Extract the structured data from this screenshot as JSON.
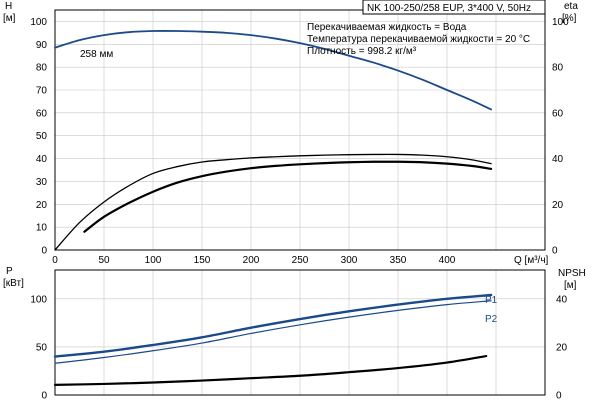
{
  "chart_data": [
    {
      "type": "line",
      "title": "NK 100-250/258 EUP, 3*400 V, 50Hz",
      "notes": [
        "Перекачиваемая жидкость = Вода",
        "Температура перекачиваемой жидкости = 20 °C",
        "Плотность = 998.2 кг/м³"
      ],
      "xlabel": "Q [м³/ч]",
      "xlim": [
        0,
        500
      ],
      "xticks": [
        0,
        50,
        100,
        150,
        200,
        250,
        300,
        350,
        400
      ],
      "grid": true,
      "left_axis": {
        "label_top": "H",
        "label_unit": "[м]",
        "ylim": [
          0,
          105
        ],
        "ticks": [
          0,
          10,
          20,
          30,
          40,
          50,
          60,
          70,
          80,
          90,
          100
        ]
      },
      "right_axis": {
        "label_top": "eta",
        "label_unit": "[%]",
        "ylim": [
          0,
          105
        ],
        "ticks": [
          0,
          20,
          40,
          60,
          80,
          100
        ]
      },
      "series": [
        {
          "name": "258 мм",
          "axis": "left",
          "color": "#1a4a8a",
          "x": [
            0,
            25,
            50,
            75,
            100,
            125,
            150,
            175,
            200,
            225,
            250,
            275,
            300,
            325,
            350,
            375,
            400,
            425,
            445
          ],
          "y": [
            88.5,
            91.8,
            94.0,
            95.3,
            95.8,
            95.8,
            95.5,
            95.0,
            94.0,
            92.5,
            90.5,
            88.0,
            85.0,
            82.0,
            78.5,
            74.5,
            70.0,
            65.5,
            61.5
          ]
        },
        {
          "axis": "right",
          "color": "#000000",
          "x": [
            0,
            25,
            50,
            75,
            100,
            125,
            150,
            175,
            200,
            225,
            250,
            275,
            300,
            325,
            350,
            375,
            400,
            425,
            445
          ],
          "y": [
            0,
            12,
            21,
            28,
            33.5,
            36.5,
            38.5,
            39.5,
            40.3,
            40.8,
            41.2,
            41.5,
            41.7,
            41.8,
            41.8,
            41.5,
            40.8,
            39.5,
            37.8
          ]
        },
        {
          "axis": "right",
          "color": "#000000",
          "x": [
            30,
            50,
            75,
            100,
            125,
            150,
            175,
            200,
            225,
            250,
            275,
            300,
            325,
            350,
            375,
            400,
            425,
            445
          ],
          "y": [
            8,
            14.5,
            20.5,
            25.5,
            29.5,
            32.3,
            34.3,
            35.8,
            36.8,
            37.5,
            38.0,
            38.4,
            38.6,
            38.6,
            38.4,
            37.8,
            36.8,
            35.5
          ]
        }
      ]
    },
    {
      "type": "line",
      "xlim": [
        0,
        500
      ],
      "grid": true,
      "left_axis": {
        "label_top": "P",
        "label_unit": "[кВт]",
        "ylim": [
          0,
          130
        ],
        "ticks": [
          0,
          50,
          100
        ]
      },
      "right_axis": {
        "label_top": "NPSH",
        "label_unit": "[м]",
        "ylim": [
          0,
          52
        ],
        "ticks": [
          0,
          20,
          40
        ]
      },
      "series": [
        {
          "name": "P1",
          "axis": "left",
          "color": "#1a4a8a",
          "x": [
            0,
            50,
            100,
            150,
            200,
            250,
            300,
            350,
            400,
            445
          ],
          "y": [
            40,
            45,
            52,
            60,
            70,
            79,
            87,
            94,
            100,
            104
          ]
        },
        {
          "name": "P2",
          "axis": "left",
          "color": "#1a4a8a",
          "x": [
            0,
            50,
            100,
            150,
            200,
            250,
            300,
            350,
            400,
            445
          ],
          "y": [
            33,
            39,
            46,
            54,
            64,
            73,
            81,
            88,
            94,
            98
          ]
        },
        {
          "axis": "right",
          "color": "#000000",
          "x": [
            0,
            50,
            100,
            150,
            200,
            250,
            300,
            350,
            400,
            440
          ],
          "y": [
            4.2,
            4.6,
            5.2,
            6.0,
            7.0,
            8.0,
            9.5,
            11.2,
            13.5,
            16.2
          ]
        }
      ]
    }
  ]
}
